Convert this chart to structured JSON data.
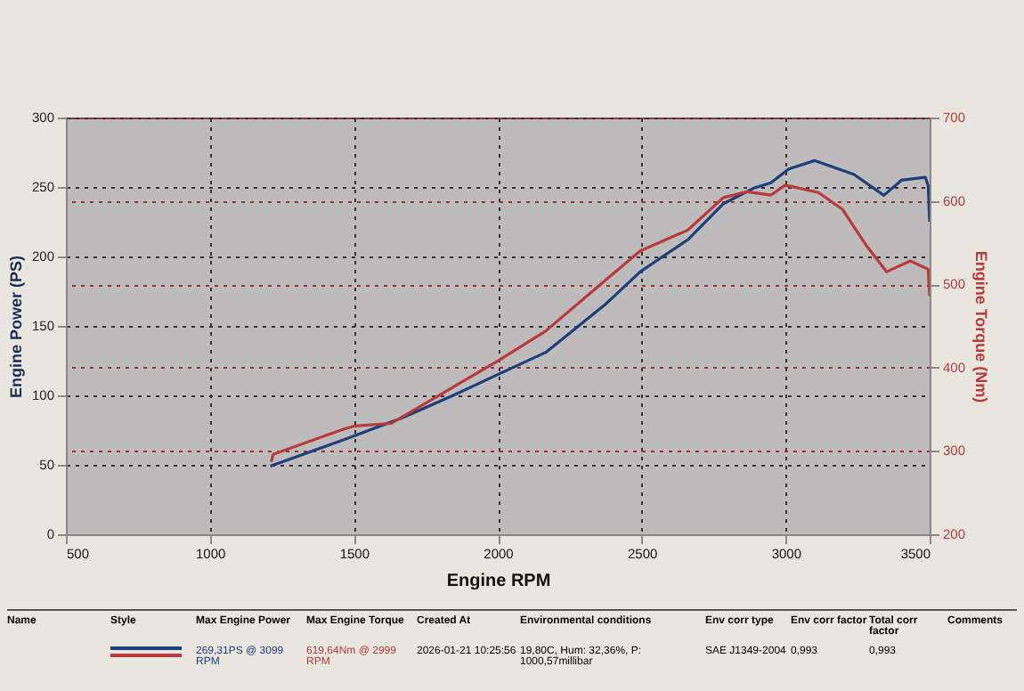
{
  "chart_data": {
    "type": "line",
    "xlabel": "Engine RPM",
    "ylabel": "Engine Power (PS)",
    "y2label": "Engine Torque (Nm)",
    "xlim": [
      500,
      3500
    ],
    "xticks": [
      500,
      1000,
      1500,
      2000,
      2500,
      3000,
      3500
    ],
    "ylim": [
      0,
      300
    ],
    "yticks": [
      0,
      50,
      100,
      150,
      200,
      250,
      300
    ],
    "y2lim": [
      200,
      700
    ],
    "y2ticks": [
      200,
      300,
      400,
      500,
      600,
      700
    ],
    "grid": true,
    "line_style": "solid",
    "marker": "none",
    "series": [
      {
        "color": "#1f3f7a",
        "x": [
          1210,
          1464,
          1670,
          1835,
          2000,
          2167,
          2371,
          2495,
          2660,
          2784,
          2887,
          2949,
          3011,
          3100,
          3238,
          3341,
          3403,
          3485,
          3495,
          3500
        ],
        "values": [
          49,
          68,
          84,
          99,
          115,
          131,
          165,
          189,
          212,
          238,
          249,
          253,
          263,
          269,
          259,
          244,
          255,
          257,
          251,
          225
        ]
      },
      {
        "color": "#b83a3a",
        "axis": "y2",
        "x": [
          1213,
          1220,
          1464,
          1505,
          1629,
          1773,
          2000,
          2167,
          2371,
          2495,
          2660,
          2784,
          2866,
          2949,
          2999,
          3114,
          3197,
          3279,
          3351,
          3433,
          3495,
          3500
        ],
        "values": [
          287,
          296,
          326,
          330,
          333,
          362,
          408,
          444,
          504,
          540,
          565,
          604,
          611,
          607,
          619,
          610,
          590,
          547,
          515,
          528,
          518,
          486
        ]
      }
    ],
    "annotations": [
      "Name",
      "Style",
      "Max Engine Power",
      "Max Engine Torque",
      "Created At",
      "Environmental conditions",
      "Env corr type",
      "Env corr factor",
      "Total corr factor",
      "Comments",
      "269,31PS @ 3099 RPM",
      "619,64Nm @ 2999 RPM",
      "2026-01-21 10:25:56",
      "19,80C, Hum: 32,36%, P: 1000,57millibar",
      "SAE J1349-2004",
      "0,993",
      "0,993"
    ]
  }
}
